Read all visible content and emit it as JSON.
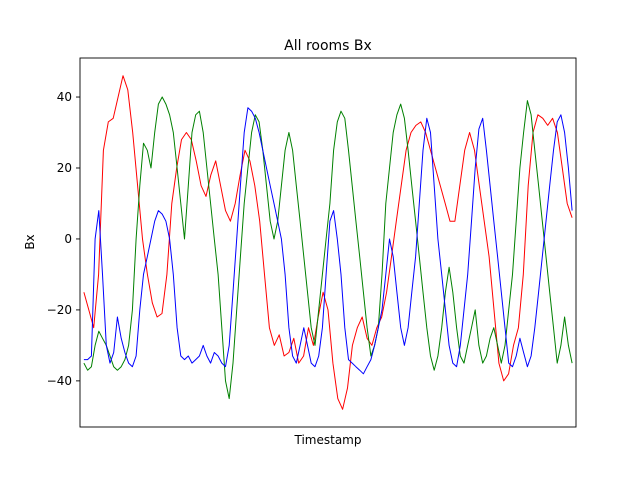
{
  "chart_data": {
    "type": "line",
    "title": "All rooms Bx",
    "xlabel": "Timestamp",
    "ylabel": "Bx",
    "xlim": [
      -1,
      126
    ],
    "ylim": [
      -53,
      51
    ],
    "yticks": [
      40,
      20,
      0,
      -20,
      -40
    ],
    "ytick_labels": [
      "40",
      "20",
      "0",
      "−20",
      "−40"
    ],
    "xticks_visible": false,
    "grid": false,
    "legend": false,
    "series": [
      {
        "color": "#ff0000",
        "values": [
          -15,
          -20,
          -25,
          -10,
          25,
          33,
          34,
          40,
          46,
          42,
          30,
          15,
          0,
          -10,
          -18,
          -22,
          -21,
          -10,
          10,
          20,
          28,
          30,
          28,
          22,
          15,
          12,
          18,
          22,
          15,
          8,
          5,
          10,
          18,
          25,
          22,
          15,
          5,
          -10,
          -25,
          -30,
          -27,
          -33,
          -32,
          -28,
          -35,
          -33,
          -25,
          -30,
          -22,
          -15,
          -20,
          -35,
          -45,
          -48,
          -42,
          -30,
          -25,
          -22,
          -28,
          -30,
          -25,
          -22,
          -15,
          -5,
          5,
          15,
          25,
          30,
          32,
          33,
          30,
          25,
          20,
          15,
          10,
          5,
          5,
          15,
          25,
          30,
          25,
          15,
          5,
          -5,
          -20,
          -35,
          -40,
          -38,
          -30,
          -25,
          -10,
          15,
          30,
          35,
          34,
          32,
          34,
          30,
          20,
          10,
          6
        ]
      },
      {
        "color": "#008000",
        "values": [
          -35,
          -37,
          -36,
          -30,
          -26,
          -28,
          -30,
          -33,
          -36,
          -37,
          -36,
          -34,
          -30,
          -20,
          0,
          15,
          27,
          25,
          20,
          30,
          38,
          40,
          38,
          35,
          30,
          20,
          10,
          0,
          15,
          30,
          35,
          36,
          30,
          20,
          10,
          0,
          -10,
          -25,
          -40,
          -45,
          -35,
          -20,
          -5,
          10,
          20,
          30,
          35,
          33,
          25,
          15,
          5,
          0,
          5,
          15,
          25,
          30,
          25,
          15,
          5,
          -5,
          -15,
          -25,
          -30,
          -20,
          -10,
          0,
          10,
          25,
          33,
          36,
          34,
          25,
          15,
          5,
          -5,
          -15,
          -25,
          -33,
          -30,
          -25,
          -10,
          10,
          20,
          30,
          35,
          38,
          34,
          25,
          15,
          5,
          -5,
          -15,
          -25,
          -33,
          -37,
          -33,
          -25,
          -15,
          -8,
          -15,
          -25,
          -33,
          -35,
          -30,
          -25,
          -20,
          -30,
          -35,
          -33,
          -28,
          -25,
          -30,
          -35,
          -30,
          -20,
          -10,
          5,
          20,
          30,
          39,
          35,
          25,
          15,
          5,
          -5,
          -15,
          -25,
          -35,
          -30,
          -22,
          -30,
          -35
        ]
      },
      {
        "color": "#0000ff",
        "values": [
          -34,
          -34,
          -33,
          0,
          8,
          -10,
          -30,
          -35,
          -32,
          -22,
          -28,
          -32,
          -35,
          -36,
          -33,
          -20,
          -10,
          -5,
          0,
          5,
          8,
          7,
          5,
          0,
          -10,
          -25,
          -33,
          -34,
          -33,
          -35,
          -34,
          -33,
          -30,
          -33,
          -35,
          -32,
          -33,
          -35,
          -36,
          -30,
          -15,
          0,
          15,
          30,
          37,
          36,
          34,
          30,
          25,
          20,
          15,
          10,
          5,
          0,
          -10,
          -25,
          -33,
          -35,
          -30,
          -25,
          -30,
          -35,
          -36,
          -33,
          -25,
          -10,
          5,
          8,
          0,
          -10,
          -25,
          -34,
          -35,
          -36,
          -37,
          -38,
          -36,
          -34,
          -30,
          -25,
          -20,
          -10,
          0,
          -5,
          -15,
          -25,
          -30,
          -25,
          -15,
          -5,
          10,
          25,
          34,
          30,
          15,
          0,
          -10,
          -20,
          -30,
          -35,
          -36,
          -30,
          -20,
          -10,
          5,
          20,
          31,
          34,
          25,
          15,
          5,
          -5,
          -15,
          -25,
          -35,
          -36,
          -33,
          -28,
          -32,
          -36,
          -33,
          -25,
          -15,
          -5,
          5,
          15,
          25,
          33,
          35,
          30,
          20,
          8
        ]
      }
    ]
  }
}
